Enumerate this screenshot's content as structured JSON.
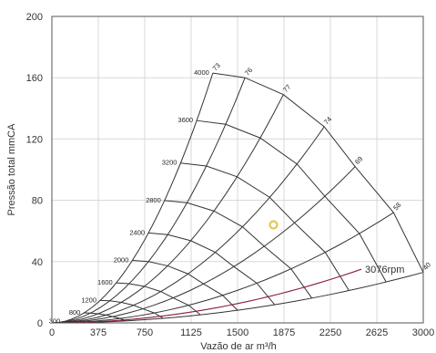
{
  "chart_data": {
    "type": "line",
    "title": "",
    "xlabel": "Vazão de ar m³/h",
    "ylabel": "Pressão total mmCA",
    "xlim": [
      0,
      3000
    ],
    "ylim": [
      0,
      200
    ],
    "x_ticks": [
      "0",
      "375",
      "750",
      "1125",
      "1500",
      "1875",
      "2250",
      "2625",
      "3000"
    ],
    "y_ticks": [
      "0",
      "40",
      "80",
      "120",
      "160",
      "200"
    ],
    "grid": true,
    "speed_curves": [
      {
        "label": "300",
        "rpm": 300
      },
      {
        "label": "800",
        "rpm": 800
      },
      {
        "label": "1200",
        "rpm": 1200
      },
      {
        "label": "1600",
        "rpm": 1600
      },
      {
        "label": "2000",
        "rpm": 2000
      },
      {
        "label": "2400",
        "rpm": 2400
      },
      {
        "label": "2800",
        "rpm": 2800
      },
      {
        "label": "3200",
        "rpm": 3200
      },
      {
        "label": "3600",
        "rpm": 3600
      },
      {
        "label": "4000",
        "rpm": 4000
      }
    ],
    "efficiency_lines": [
      {
        "label": "73",
        "end": [
          1300,
          163
        ]
      },
      {
        "label": "76",
        "end": [
          1560,
          160
        ]
      },
      {
        "label": "77",
        "end": [
          1870,
          149
        ]
      },
      {
        "label": "74",
        "end": [
          2200,
          128
        ]
      },
      {
        "label": "69",
        "end": [
          2450,
          102
        ]
      },
      {
        "label": "58",
        "end": [
          2760,
          72
        ]
      },
      {
        "label": "40",
        "end": [
          3000,
          33
        ]
      }
    ],
    "system_curve": {
      "label": "3076rpm",
      "x_max": 2500,
      "y_max": 35
    },
    "operating_point": {
      "x": 1790,
      "y": 64,
      "color": "#e6c84a"
    },
    "colors": {
      "curves": "#333333",
      "system": "#8b1c3c",
      "grid": "#d8d8d8"
    }
  }
}
